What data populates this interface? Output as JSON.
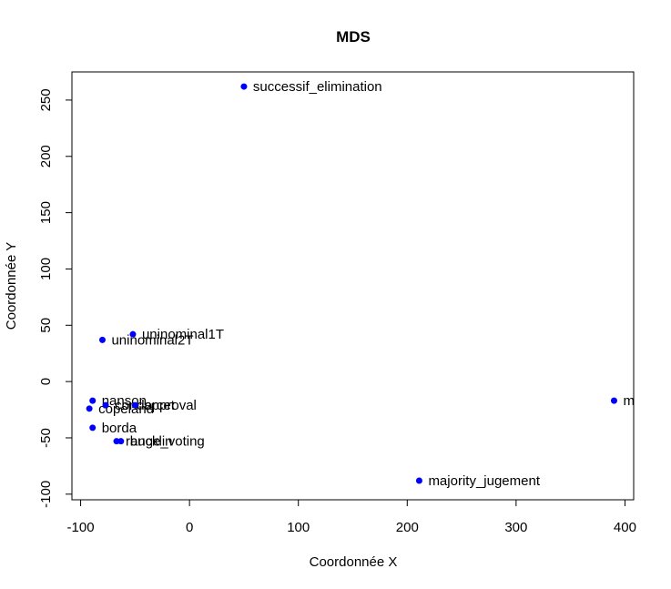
{
  "chart_data": {
    "type": "scatter",
    "title": "MDS",
    "xlabel": "Coordonnée X",
    "ylabel": "Coordonnée Y",
    "xlim": [
      -108,
      408
    ],
    "ylim": [
      -105,
      275
    ],
    "xticks": [
      -100,
      0,
      100,
      200,
      300,
      400
    ],
    "yticks": [
      -100,
      -50,
      0,
      50,
      100,
      150,
      200,
      250
    ],
    "grid": false,
    "point_color": "#0000ff",
    "points": [
      {
        "label": "successif_elimination",
        "x": 50,
        "y": 262
      },
      {
        "label": "uninominal1T",
        "x": -52,
        "y": 42
      },
      {
        "label": "uninominal2T",
        "x": -80,
        "y": 37
      },
      {
        "label": "nanson",
        "x": -89,
        "y": -17
      },
      {
        "label": "copeland",
        "x": -92,
        "y": -24
      },
      {
        "label": "condorcet",
        "x": -77,
        "y": -21
      },
      {
        "label": "approval",
        "x": -50,
        "y": -21
      },
      {
        "label": "borda",
        "x": -89,
        "y": -41
      },
      {
        "label": "range_voting",
        "x": -67,
        "y": -53
      },
      {
        "label": "bucklin",
        "x": -63,
        "y": -53
      },
      {
        "label": "majority_jugement",
        "x": 211,
        "y": -88
      },
      {
        "label": "m",
        "x": 390,
        "y": -17
      }
    ]
  }
}
